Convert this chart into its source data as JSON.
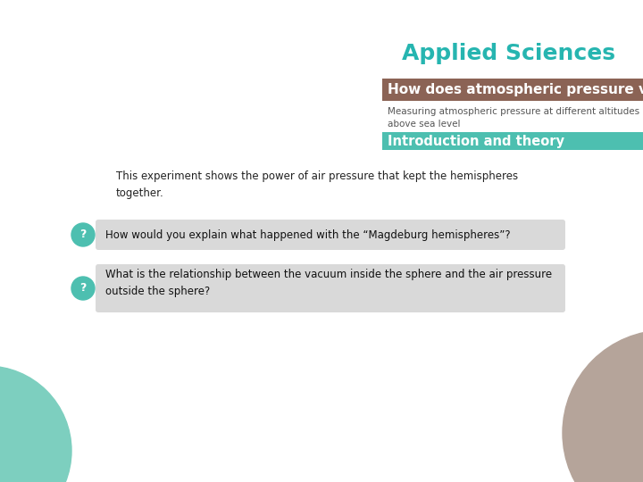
{
  "background_color": "#ffffff",
  "title_applied": "Applied Sciences",
  "title_applied_color": "#26b5b0",
  "title_applied_fontsize": 18,
  "header_bar_color": "#8B6355",
  "header_text": "How does atmospheric pressure vary?",
  "header_text_color": "#ffffff",
  "header_fontsize": 11,
  "subtitle_text": "Measuring atmospheric pressure at different altitudes\nabove sea level",
  "subtitle_color": "#555555",
  "subtitle_fontsize": 7.5,
  "section_bar_color": "#4DBFB0",
  "section_text": "Introduction and theory",
  "section_text_color": "#ffffff",
  "section_fontsize": 10.5,
  "intro_text": "This experiment shows the power of air pressure that kept the hemispheres\ntogether.",
  "intro_color": "#222222",
  "intro_fontsize": 8.5,
  "question1_text": "How would you explain what happened with the “Magdeburg hemispheres”?",
  "question2_text": "What is the relationship between the vacuum inside the sphere and the air pressure\noutside the sphere?",
  "question_color": "#111111",
  "question_fontsize": 8.5,
  "question_bg_color": "#d9d9d9",
  "question_icon_color": "#4DBFB0",
  "question_icon_text_color": "#ffffff",
  "circle_bottom_left_color": "#7DCFBF",
  "circle_bottom_right_color": "#b5a49a"
}
